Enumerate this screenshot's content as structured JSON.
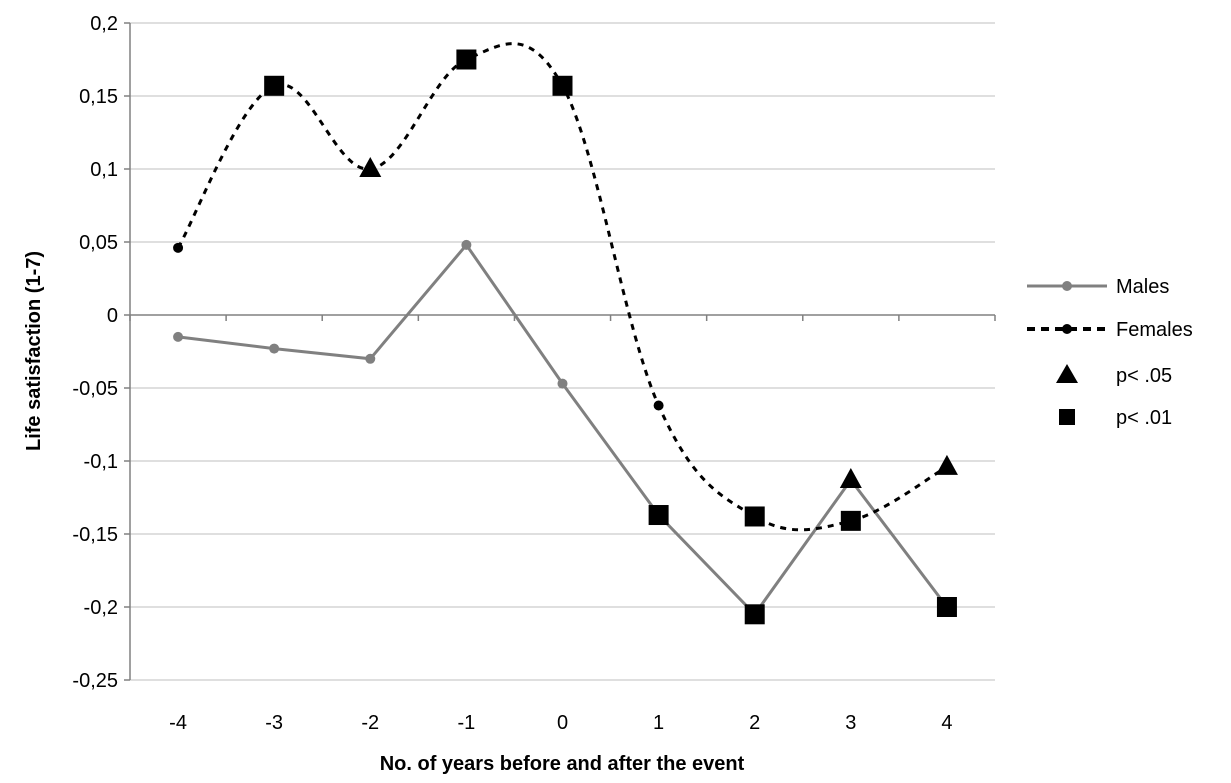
{
  "chart_data": {
    "type": "line",
    "xlabel": "No. of years before and after the event",
    "ylabel": "Life satisfaction (1-7)",
    "x": [
      "-4",
      "-3",
      "-2",
      "-1",
      "0",
      "1",
      "2",
      "3",
      "4"
    ],
    "y_ticks": [
      "0,2",
      "0,15",
      "0,1",
      "0,05",
      "0",
      "-0,05",
      "-0,1",
      "-0,15",
      "-0,2",
      "-0,25"
    ],
    "ylim": [
      -0.25,
      0.2
    ],
    "grid": "horizontal",
    "legend_position": "right",
    "series": [
      {
        "name": "Males",
        "style": "solid",
        "color": "#808080",
        "values": [
          -0.015,
          -0.023,
          -0.03,
          0.048,
          -0.047,
          -0.137,
          -0.205,
          -0.113,
          -0.2
        ],
        "significance": [
          "",
          "",
          "",
          "",
          "",
          "p01",
          "p01",
          "p05",
          "p01"
        ]
      },
      {
        "name": "Females",
        "style": "dotted",
        "color": "#000000",
        "values": [
          0.046,
          0.157,
          0.1,
          0.175,
          0.157,
          -0.062,
          -0.138,
          -0.141,
          -0.104
        ],
        "significance": [
          "",
          "p01",
          "p05",
          "p01",
          "p01",
          "",
          "p01",
          "p01",
          "p05"
        ]
      }
    ],
    "legend": {
      "males": "Males",
      "females": "Females",
      "p05": "p< .05",
      "p01": "p< .01"
    }
  }
}
